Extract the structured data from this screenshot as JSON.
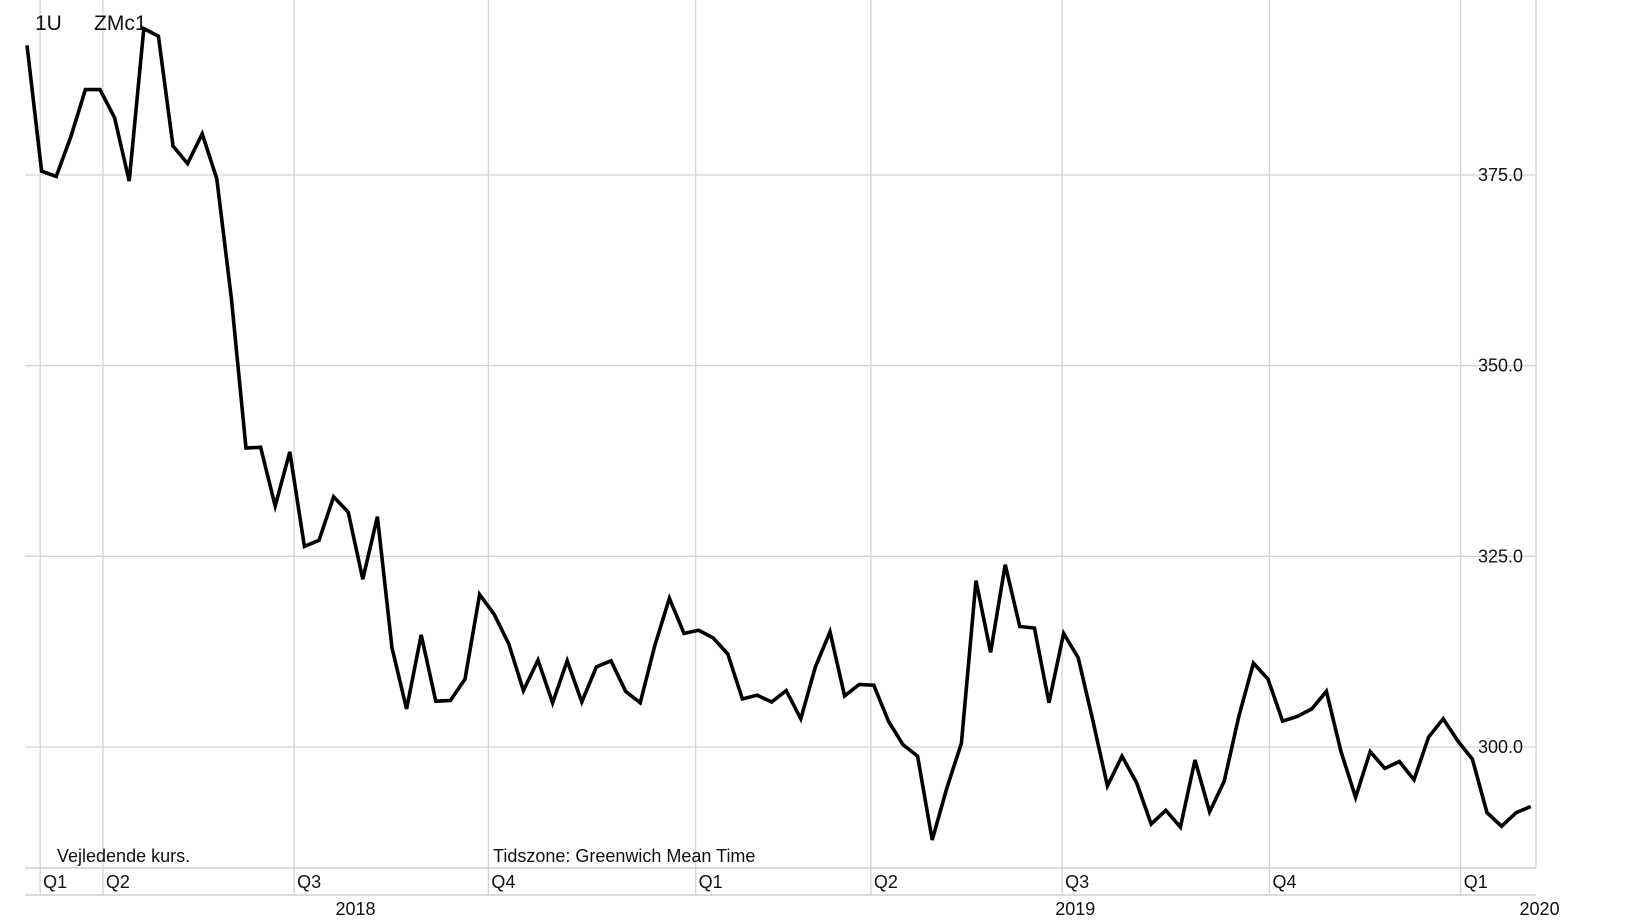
{
  "header": {
    "range_label": "1U",
    "symbol_label": "ZMc1"
  },
  "footer": {
    "note_left": "Vejledende kurs.",
    "note_timezone": "Tidszone: Greenwich Mean Time"
  },
  "chart_data": {
    "type": "line",
    "title": "",
    "xlabel": "",
    "ylabel": "",
    "grid": true,
    "legend": "none",
    "line_color": "#000000",
    "y_axis_side": "right",
    "ylim": [
      287,
      396
    ],
    "yticks": [
      {
        "value": 300,
        "label": "300.0"
      },
      {
        "value": 325,
        "label": "325.0"
      },
      {
        "value": 350,
        "label": "350.0"
      },
      {
        "value": 375,
        "label": "375.0"
      }
    ],
    "x_range_weeks": [
      0,
      105
    ],
    "quarter_ticks": [
      {
        "label": "Q1",
        "week": 0.9
      },
      {
        "label": "Q2",
        "week": 5.2
      },
      {
        "label": "Q3",
        "week": 18.3
      },
      {
        "label": "Q4",
        "week": 31.6
      },
      {
        "label": "Q1",
        "week": 45.8
      },
      {
        "label": "Q2",
        "week": 57.8
      },
      {
        "label": "Q3",
        "week": 70.9
      },
      {
        "label": "Q4",
        "week": 85.1
      },
      {
        "label": "Q1",
        "week": 98.2
      }
    ],
    "year_ticks": [
      {
        "label": "2018",
        "week": 22.5
      },
      {
        "label": "2019",
        "week": 71.8
      },
      {
        "label": "2020",
        "week": 103.6
      }
    ],
    "series": [
      {
        "values": [
          392,
          375.5,
          374.8,
          380,
          386.2,
          386.2,
          382.5,
          374.2,
          394.2,
          393.2,
          378.8,
          376.5,
          380.4,
          374.5,
          358.8,
          339.2,
          339.3,
          331.6,
          338.7,
          326.3,
          327.1,
          332.8,
          330.8,
          322,
          330.2,
          313,
          305,
          314.7,
          306,
          306.1,
          308.9,
          320,
          317.4,
          313.5,
          307.4,
          311.4,
          305.8,
          311.3,
          305.9,
          310.5,
          311.3,
          307.3,
          305.8,
          313.3,
          319.5,
          314.9,
          315.3,
          314.3,
          312.2,
          306.3,
          306.8,
          305.9,
          307.4,
          303.7,
          310.5,
          315.1,
          306.7,
          308.2,
          308.1,
          303.4,
          300.3,
          298.8,
          287.8,
          294.6,
          300.5,
          321.8,
          312.4,
          323.9,
          315.8,
          315.6,
          305.8,
          314.9,
          311.7,
          303.5,
          294.9,
          298.8,
          295.3,
          289.9,
          291.7,
          289.5,
          298.3,
          291.5,
          295.5,
          304,
          311,
          308.9,
          303.4,
          304,
          305,
          307.3,
          299.4,
          293.4,
          299.4,
          297.2,
          298.1,
          295.7,
          301.3,
          303.7,
          300.8,
          298.4,
          291.4,
          289.6,
          291.4,
          292.2
        ]
      }
    ]
  }
}
